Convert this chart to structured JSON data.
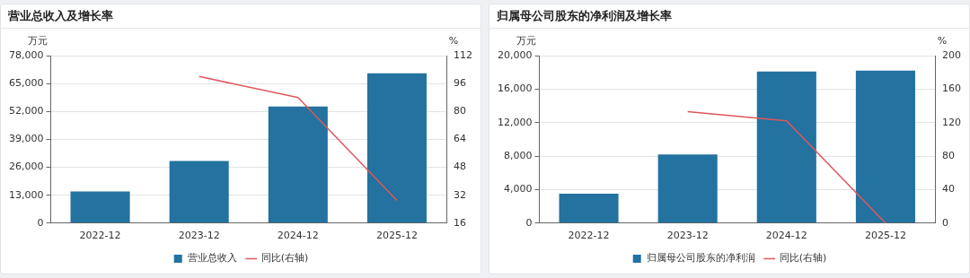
{
  "chart_data": [
    {
      "type": "bar",
      "title": "营业总收入及增长率",
      "ylabel": "万元",
      "y2label": "%",
      "categories": [
        "2022-12",
        "2023-12",
        "2024-12",
        "2025-12"
      ],
      "series": [
        {
          "name": "营业总收入",
          "color": "#23729f",
          "values": [
            14700,
            28900,
            54300,
            69800
          ]
        },
        {
          "name": "同比(右轴)",
          "type": "line",
          "axis": "y2",
          "color": "#e0575b",
          "values": [
            null,
            100,
            88,
            29
          ]
        }
      ],
      "ylim": [
        0,
        78000
      ],
      "yticks": [
        0,
        {
          "value": 13000,
          "label": "13,000"
        },
        {
          "value": 26000,
          "label": "26,000"
        },
        {
          "value": 39000,
          "label": "39,000"
        },
        {
          "value": 52000,
          "label": "52,000"
        },
        {
          "value": 65000,
          "label": "65,000"
        },
        {
          "value": 78000,
          "label": "78,000"
        }
      ],
      "y2lim": [
        16,
        112
      ],
      "y2ticks": [
        16,
        32,
        48,
        64,
        80,
        96,
        112
      ],
      "grid": "y",
      "legend": "bottom",
      "marker": "none"
    },
    {
      "type": "bar",
      "title": "归属母公司股东的净利润及增长率",
      "ylabel": "万元",
      "y2label": "%",
      "categories": [
        "2022-12",
        "2023-12",
        "2024-12",
        "2025-12"
      ],
      "series": [
        {
          "name": "归属母公司股东的净利润",
          "color": "#23729f",
          "values": [
            3500,
            8200,
            18100,
            18200
          ]
        },
        {
          "name": "同比(右轴)",
          "type": "line",
          "axis": "y2",
          "color": "#e0575b",
          "values": [
            null,
            133,
            122,
            0
          ]
        }
      ],
      "ylim": [
        0,
        20000
      ],
      "yticks": [
        0,
        {
          "value": 4000,
          "label": "4,000"
        },
        {
          "value": 8000,
          "label": "8,000"
        },
        {
          "value": 12000,
          "label": "12,000"
        },
        {
          "value": 16000,
          "label": "16,000"
        },
        {
          "value": 20000,
          "label": "20,000"
        }
      ],
      "y2lim": [
        0,
        200
      ],
      "y2ticks": [
        0,
        40,
        80,
        120,
        160,
        200
      ],
      "grid": "y",
      "legend": "bottom",
      "marker": "none"
    }
  ]
}
